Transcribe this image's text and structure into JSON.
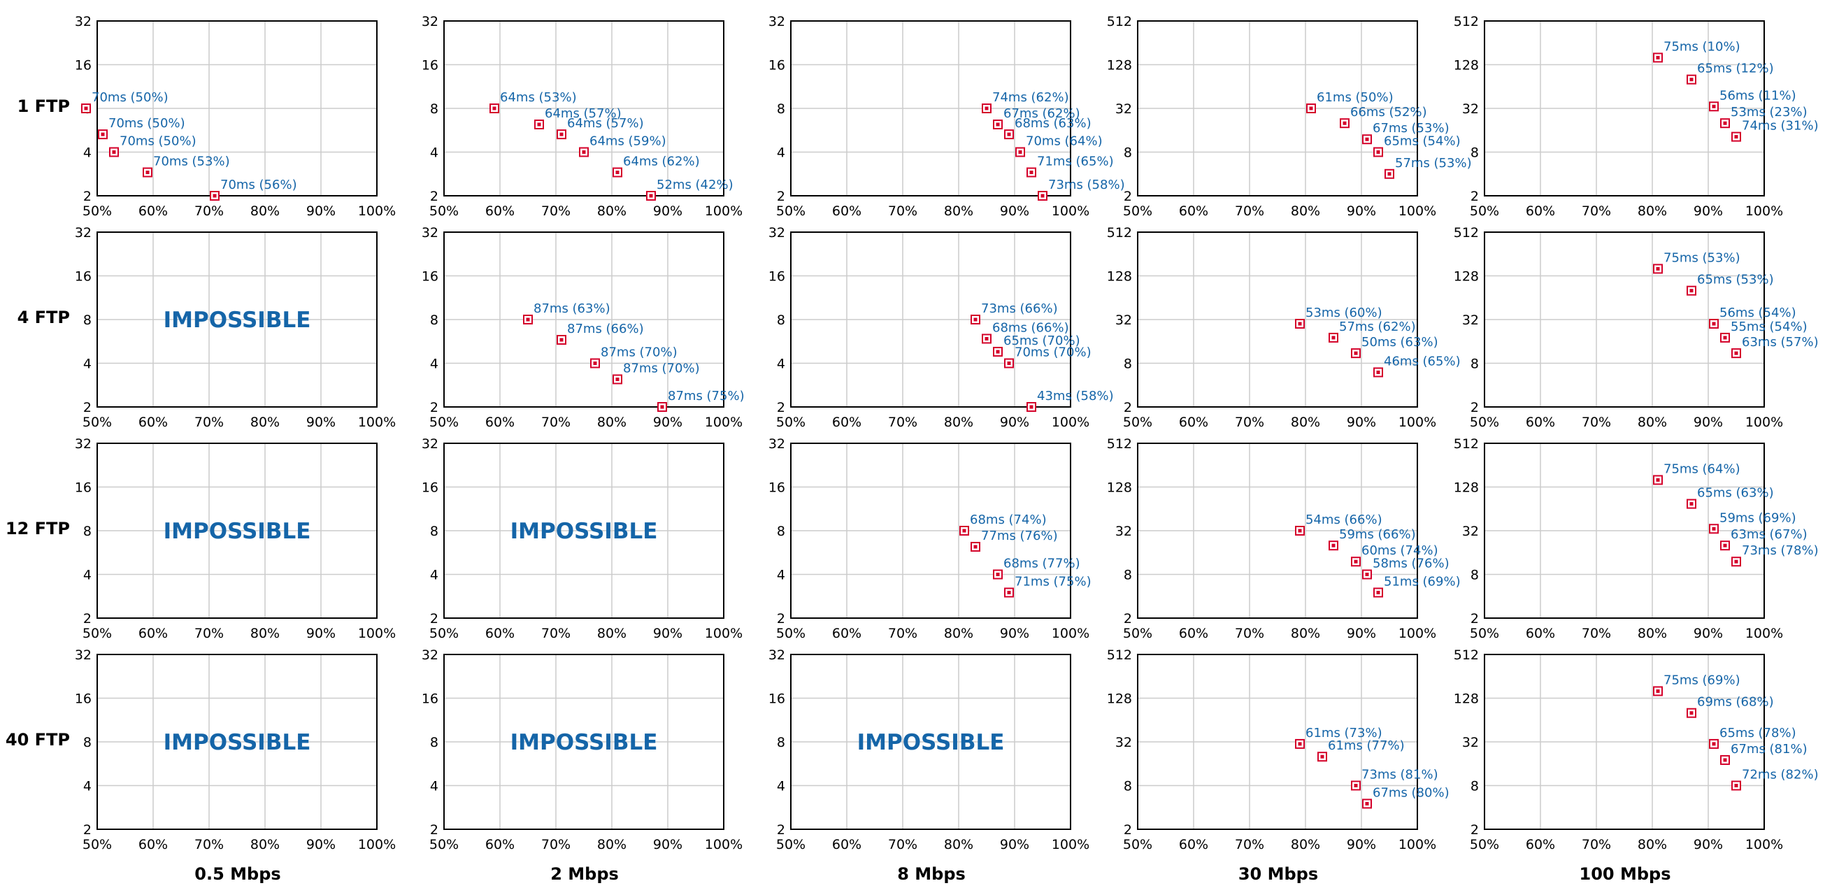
{
  "row_labels": [
    "1 FTP",
    "4 FTP",
    "12 FTP",
    "40 FTP"
  ],
  "col_labels": [
    "0.5 Mbps",
    "2 Mbps",
    "8 Mbps",
    "30 Mbps",
    "100 Mbps"
  ],
  "impossible_text": "IMPOSSIBLE",
  "colors": {
    "marker": "#d4002a",
    "label": "#1565a8",
    "impossible": "#1565a8",
    "grid": "#cccccc",
    "frame": "#000000"
  },
  "chart_data": [
    {
      "type": "scatter",
      "row": 0,
      "col": 0,
      "xscale": "linear",
      "yscale": "log2",
      "xlim": [
        50,
        100
      ],
      "ylim": [
        2,
        32
      ],
      "xticks": [
        "50%",
        "60%",
        "70%",
        "80%",
        "90%",
        "100%"
      ],
      "yticks": [
        "2",
        "4",
        "8",
        "16",
        "32"
      ],
      "impossible": false,
      "points": [
        {
          "x": 48,
          "y": 8,
          "label": "70ms (50%)"
        },
        {
          "x": 51,
          "y": 5.3,
          "label": "70ms (50%)"
        },
        {
          "x": 53,
          "y": 4,
          "label": "70ms (50%)"
        },
        {
          "x": 59,
          "y": 2.9,
          "label": "70ms (53%)"
        },
        {
          "x": 71,
          "y": 2,
          "label": "70ms (56%)"
        }
      ]
    },
    {
      "type": "scatter",
      "row": 0,
      "col": 1,
      "xscale": "linear",
      "yscale": "log2",
      "xlim": [
        50,
        100
      ],
      "ylim": [
        2,
        32
      ],
      "xticks": [
        "50%",
        "60%",
        "70%",
        "80%",
        "90%",
        "100%"
      ],
      "yticks": [
        "2",
        "4",
        "8",
        "16",
        "32"
      ],
      "impossible": false,
      "points": [
        {
          "x": 59,
          "y": 8,
          "label": "64ms (53%)"
        },
        {
          "x": 67,
          "y": 6.2,
          "label": "64ms (57%)"
        },
        {
          "x": 71,
          "y": 5.3,
          "label": "64ms (57%)"
        },
        {
          "x": 75,
          "y": 4,
          "label": "64ms (59%)"
        },
        {
          "x": 81,
          "y": 2.9,
          "label": "64ms (62%)"
        },
        {
          "x": 87,
          "y": 2,
          "label": "52ms (42%)"
        }
      ]
    },
    {
      "type": "scatter",
      "row": 0,
      "col": 2,
      "xscale": "linear",
      "yscale": "log2",
      "xlim": [
        50,
        100
      ],
      "ylim": [
        2,
        32
      ],
      "xticks": [
        "50%",
        "60%",
        "70%",
        "80%",
        "90%",
        "100%"
      ],
      "yticks": [
        "2",
        "4",
        "8",
        "16",
        "32"
      ],
      "impossible": false,
      "points": [
        {
          "x": 85,
          "y": 8,
          "label": "74ms (62%)"
        },
        {
          "x": 87,
          "y": 6.2,
          "label": "67ms (62%)"
        },
        {
          "x": 89,
          "y": 5.3,
          "label": "68ms (63%)"
        },
        {
          "x": 91,
          "y": 4,
          "label": "70ms (64%)"
        },
        {
          "x": 93,
          "y": 2.9,
          "label": "71ms (65%)"
        },
        {
          "x": 95,
          "y": 2,
          "label": "73ms (58%)"
        }
      ]
    },
    {
      "type": "scatter",
      "row": 0,
      "col": 3,
      "xscale": "linear",
      "yscale": "log2",
      "xlim": [
        50,
        100
      ],
      "ylim": [
        2,
        512
      ],
      "xticks": [
        "50%",
        "60%",
        "70%",
        "80%",
        "90%",
        "100%"
      ],
      "yticks": [
        "2",
        "8",
        "32",
        "128",
        "512"
      ],
      "impossible": false,
      "points": [
        {
          "x": 81,
          "y": 32,
          "label": "61ms (50%)"
        },
        {
          "x": 87,
          "y": 20,
          "label": "66ms (52%)"
        },
        {
          "x": 91,
          "y": 12,
          "label": "67ms (53%)"
        },
        {
          "x": 93,
          "y": 8,
          "label": "65ms (54%)"
        },
        {
          "x": 95,
          "y": 4,
          "label": "57ms (53%)"
        }
      ]
    },
    {
      "type": "scatter",
      "row": 0,
      "col": 4,
      "xscale": "linear",
      "yscale": "log2",
      "xlim": [
        50,
        100
      ],
      "ylim": [
        2,
        512
      ],
      "xticks": [
        "50%",
        "60%",
        "70%",
        "80%",
        "90%",
        "100%"
      ],
      "yticks": [
        "2",
        "8",
        "32",
        "128",
        "512"
      ],
      "impossible": false,
      "points": [
        {
          "x": 81,
          "y": 160,
          "label": "75ms (10%)"
        },
        {
          "x": 87,
          "y": 80,
          "label": "65ms (12%)"
        },
        {
          "x": 91,
          "y": 34,
          "label": "56ms (11%)"
        },
        {
          "x": 93,
          "y": 20,
          "label": "53ms (23%)"
        },
        {
          "x": 95,
          "y": 13,
          "label": "74ms (31%)"
        }
      ]
    },
    {
      "type": "scatter",
      "row": 1,
      "col": 0,
      "xscale": "linear",
      "yscale": "log2",
      "xlim": [
        50,
        100
      ],
      "ylim": [
        2,
        32
      ],
      "xticks": [
        "50%",
        "60%",
        "70%",
        "80%",
        "90%",
        "100%"
      ],
      "yticks": [
        "2",
        "4",
        "8",
        "16",
        "32"
      ],
      "impossible": true,
      "points": []
    },
    {
      "type": "scatter",
      "row": 1,
      "col": 1,
      "xscale": "linear",
      "yscale": "log2",
      "xlim": [
        50,
        100
      ],
      "ylim": [
        2,
        32
      ],
      "xticks": [
        "50%",
        "60%",
        "70%",
        "80%",
        "90%",
        "100%"
      ],
      "yticks": [
        "2",
        "4",
        "8",
        "16",
        "32"
      ],
      "impossible": false,
      "points": [
        {
          "x": 65,
          "y": 8,
          "label": "87ms (63%)"
        },
        {
          "x": 71,
          "y": 5.8,
          "label": "87ms (66%)"
        },
        {
          "x": 77,
          "y": 4,
          "label": "87ms (70%)"
        },
        {
          "x": 81,
          "y": 3.1,
          "label": "87ms (70%)"
        },
        {
          "x": 89,
          "y": 2,
          "label": "87ms (75%)"
        }
      ]
    },
    {
      "type": "scatter",
      "row": 1,
      "col": 2,
      "xscale": "linear",
      "yscale": "log2",
      "xlim": [
        50,
        100
      ],
      "ylim": [
        2,
        32
      ],
      "xticks": [
        "50%",
        "60%",
        "70%",
        "80%",
        "90%",
        "100%"
      ],
      "yticks": [
        "2",
        "4",
        "8",
        "16",
        "32"
      ],
      "impossible": false,
      "points": [
        {
          "x": 83,
          "y": 8,
          "label": "73ms (66%)"
        },
        {
          "x": 85,
          "y": 5.9,
          "label": "68ms (66%)"
        },
        {
          "x": 87,
          "y": 4.8,
          "label": "65ms (70%)"
        },
        {
          "x": 89,
          "y": 4,
          "label": "70ms (70%)"
        },
        {
          "x": 93,
          "y": 2,
          "label": "43ms (58%)"
        }
      ]
    },
    {
      "type": "scatter",
      "row": 1,
      "col": 3,
      "xscale": "linear",
      "yscale": "log2",
      "xlim": [
        50,
        100
      ],
      "ylim": [
        2,
        512
      ],
      "xticks": [
        "50%",
        "60%",
        "70%",
        "80%",
        "90%",
        "100%"
      ],
      "yticks": [
        "2",
        "8",
        "32",
        "128",
        "512"
      ],
      "impossible": false,
      "points": [
        {
          "x": 79,
          "y": 28,
          "label": "53ms (60%)"
        },
        {
          "x": 85,
          "y": 18,
          "label": "57ms (62%)"
        },
        {
          "x": 89,
          "y": 11,
          "label": "50ms (63%)"
        },
        {
          "x": 93,
          "y": 6,
          "label": "46ms (65%)"
        }
      ]
    },
    {
      "type": "scatter",
      "row": 1,
      "col": 4,
      "xscale": "linear",
      "yscale": "log2",
      "xlim": [
        50,
        100
      ],
      "ylim": [
        2,
        512
      ],
      "xticks": [
        "50%",
        "60%",
        "70%",
        "80%",
        "90%",
        "100%"
      ],
      "yticks": [
        "2",
        "8",
        "32",
        "128",
        "512"
      ],
      "impossible": false,
      "points": [
        {
          "x": 81,
          "y": 160,
          "label": "75ms (53%)"
        },
        {
          "x": 87,
          "y": 80,
          "label": "65ms (53%)"
        },
        {
          "x": 91,
          "y": 28,
          "label": "56ms (54%)"
        },
        {
          "x": 93,
          "y": 18,
          "label": "55ms (54%)"
        },
        {
          "x": 95,
          "y": 11,
          "label": "63ms (57%)"
        }
      ]
    },
    {
      "type": "scatter",
      "row": 2,
      "col": 0,
      "xscale": "linear",
      "yscale": "log2",
      "xlim": [
        50,
        100
      ],
      "ylim": [
        2,
        32
      ],
      "xticks": [
        "50%",
        "60%",
        "70%",
        "80%",
        "90%",
        "100%"
      ],
      "yticks": [
        "2",
        "4",
        "8",
        "16",
        "32"
      ],
      "impossible": true,
      "points": []
    },
    {
      "type": "scatter",
      "row": 2,
      "col": 1,
      "xscale": "linear",
      "yscale": "log2",
      "xlim": [
        50,
        100
      ],
      "ylim": [
        2,
        32
      ],
      "xticks": [
        "50%",
        "60%",
        "70%",
        "80%",
        "90%",
        "100%"
      ],
      "yticks": [
        "2",
        "4",
        "8",
        "16",
        "32"
      ],
      "impossible": true,
      "points": []
    },
    {
      "type": "scatter",
      "row": 2,
      "col": 2,
      "xscale": "linear",
      "yscale": "log2",
      "xlim": [
        50,
        100
      ],
      "ylim": [
        2,
        32
      ],
      "xticks": [
        "50%",
        "60%",
        "70%",
        "80%",
        "90%",
        "100%"
      ],
      "yticks": [
        "2",
        "4",
        "8",
        "16",
        "32"
      ],
      "impossible": false,
      "points": [
        {
          "x": 81,
          "y": 8,
          "label": "68ms (74%)"
        },
        {
          "x": 83,
          "y": 6.2,
          "label": "77ms (76%)"
        },
        {
          "x": 87,
          "y": 4,
          "label": "68ms (77%)"
        },
        {
          "x": 89,
          "y": 3,
          "label": "71ms (75%)"
        }
      ]
    },
    {
      "type": "scatter",
      "row": 2,
      "col": 3,
      "xscale": "linear",
      "yscale": "log2",
      "xlim": [
        50,
        100
      ],
      "ylim": [
        2,
        512
      ],
      "xticks": [
        "50%",
        "60%",
        "70%",
        "80%",
        "90%",
        "100%"
      ],
      "yticks": [
        "2",
        "8",
        "32",
        "128",
        "512"
      ],
      "impossible": false,
      "points": [
        {
          "x": 79,
          "y": 32,
          "label": "54ms (66%)"
        },
        {
          "x": 85,
          "y": 20,
          "label": "59ms (66%)"
        },
        {
          "x": 89,
          "y": 12,
          "label": "60ms (74%)"
        },
        {
          "x": 91,
          "y": 8,
          "label": "58ms (76%)"
        },
        {
          "x": 93,
          "y": 4.5,
          "label": "51ms (69%)"
        }
      ]
    },
    {
      "type": "scatter",
      "row": 2,
      "col": 4,
      "xscale": "linear",
      "yscale": "log2",
      "xlim": [
        50,
        100
      ],
      "ylim": [
        2,
        512
      ],
      "xticks": [
        "50%",
        "60%",
        "70%",
        "80%",
        "90%",
        "100%"
      ],
      "yticks": [
        "2",
        "8",
        "32",
        "128",
        "512"
      ],
      "impossible": false,
      "points": [
        {
          "x": 81,
          "y": 160,
          "label": "75ms (64%)"
        },
        {
          "x": 87,
          "y": 75,
          "label": "65ms (63%)"
        },
        {
          "x": 91,
          "y": 34,
          "label": "59ms (69%)"
        },
        {
          "x": 93,
          "y": 20,
          "label": "63ms (67%)"
        },
        {
          "x": 95,
          "y": 12,
          "label": "73ms (78%)"
        }
      ]
    },
    {
      "type": "scatter",
      "row": 3,
      "col": 0,
      "xscale": "linear",
      "yscale": "log2",
      "xlim": [
        50,
        100
      ],
      "ylim": [
        2,
        32
      ],
      "xticks": [
        "50%",
        "60%",
        "70%",
        "80%",
        "90%",
        "100%"
      ],
      "yticks": [
        "2",
        "4",
        "8",
        "16",
        "32"
      ],
      "impossible": true,
      "points": []
    },
    {
      "type": "scatter",
      "row": 3,
      "col": 1,
      "xscale": "linear",
      "yscale": "log2",
      "xlim": [
        50,
        100
      ],
      "ylim": [
        2,
        32
      ],
      "xticks": [
        "50%",
        "60%",
        "70%",
        "80%",
        "90%",
        "100%"
      ],
      "yticks": [
        "2",
        "4",
        "8",
        "16",
        "32"
      ],
      "impossible": true,
      "points": []
    },
    {
      "type": "scatter",
      "row": 3,
      "col": 2,
      "xscale": "linear",
      "yscale": "log2",
      "xlim": [
        50,
        100
      ],
      "ylim": [
        2,
        32
      ],
      "xticks": [
        "50%",
        "60%",
        "70%",
        "80%",
        "90%",
        "100%"
      ],
      "yticks": [
        "2",
        "4",
        "8",
        "16",
        "32"
      ],
      "impossible": true,
      "points": []
    },
    {
      "type": "scatter",
      "row": 3,
      "col": 3,
      "xscale": "linear",
      "yscale": "log2",
      "xlim": [
        50,
        100
      ],
      "ylim": [
        2,
        512
      ],
      "xticks": [
        "50%",
        "60%",
        "70%",
        "80%",
        "90%",
        "100%"
      ],
      "yticks": [
        "2",
        "8",
        "32",
        "128",
        "512"
      ],
      "impossible": false,
      "points": [
        {
          "x": 79,
          "y": 30,
          "label": "61ms (73%)"
        },
        {
          "x": 83,
          "y": 20,
          "label": "61ms (77%)"
        },
        {
          "x": 89,
          "y": 8,
          "label": "73ms (81%)"
        },
        {
          "x": 91,
          "y": 4.5,
          "label": "67ms (80%)"
        }
      ]
    },
    {
      "type": "scatter",
      "row": 3,
      "col": 4,
      "xscale": "linear",
      "yscale": "log2",
      "xlim": [
        50,
        100
      ],
      "ylim": [
        2,
        512
      ],
      "xticks": [
        "50%",
        "60%",
        "70%",
        "80%",
        "90%",
        "100%"
      ],
      "yticks": [
        "2",
        "8",
        "32",
        "128",
        "512"
      ],
      "impossible": false,
      "points": [
        {
          "x": 81,
          "y": 160,
          "label": "75ms (69%)"
        },
        {
          "x": 87,
          "y": 80,
          "label": "69ms (68%)"
        },
        {
          "x": 91,
          "y": 30,
          "label": "65ms (78%)"
        },
        {
          "x": 93,
          "y": 18,
          "label": "67ms (81%)"
        },
        {
          "x": 95,
          "y": 8,
          "label": "72ms (82%)"
        }
      ]
    }
  ]
}
